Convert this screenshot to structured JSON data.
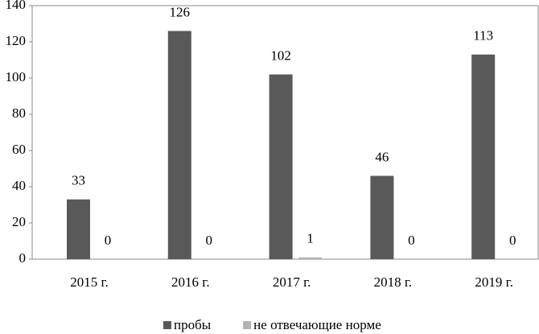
{
  "chart_data": {
    "type": "bar",
    "categories": [
      "2015 г.",
      "2016 г.",
      "2017 г.",
      "2018 г.",
      "2019 г."
    ],
    "series": [
      {
        "name": "пробы",
        "color": "#595959",
        "values": [
          33,
          126,
          102,
          46,
          113
        ]
      },
      {
        "name": "не отвечающие норме",
        "color": "#b3b3b3",
        "values": [
          0,
          0,
          1,
          0,
          0
        ]
      }
    ],
    "ylim": [
      0,
      140
    ],
    "yticks": [
      0,
      20,
      40,
      60,
      80,
      100,
      120,
      140
    ],
    "legend": "bottom"
  }
}
